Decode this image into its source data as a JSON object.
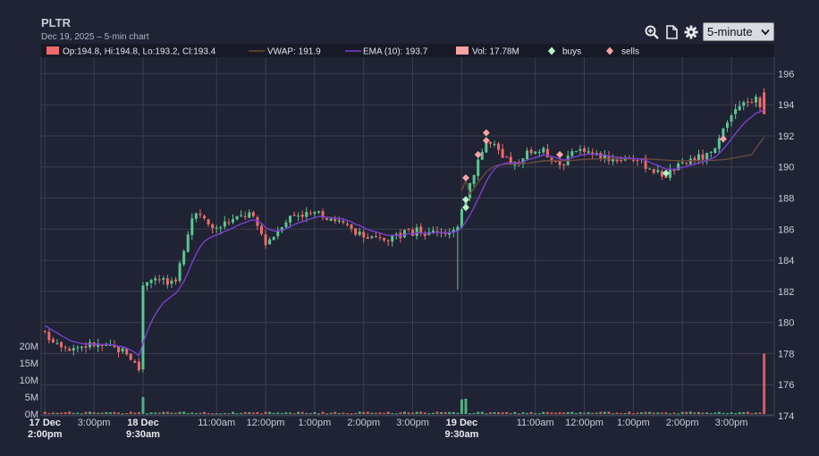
{
  "header": {
    "title": "PLTR",
    "subtitle": "Dec 19, 2025 – 5-min chart"
  },
  "toolbar": {
    "zoom_icon": "zoom-in-icon",
    "document_icon": "document-icon",
    "settings_icon": "gear-icon",
    "interval_value": "5-minute"
  },
  "legend": {
    "ohlc": "Op:194.8, Hi:194.8, Lo:193.2, Cl:193.4",
    "vwap": "VWAP: 191.9",
    "ema": "EMA (10): 193.7",
    "vol": "Vol: 17.78M",
    "buys": "buys",
    "sells": "sells"
  },
  "colors": {
    "background": "#1f2333",
    "up": "#5cc592",
    "down": "#ef6a6a",
    "vwap": "#6b4a3a",
    "ema": "#7b3fd0",
    "buy_marker": "#b9f5c9",
    "sell_marker": "#f5a3a3"
  },
  "chart_data": {
    "type": "candlestick",
    "symbol": "PLTR",
    "interval": "5-minute",
    "ylim": [
      174,
      197
    ],
    "price_ticks": [
      174,
      176,
      178,
      180,
      182,
      184,
      186,
      188,
      190,
      192,
      194,
      196
    ],
    "volume_ticks": [
      {
        "v": 0,
        "label": "0M"
      },
      {
        "v": 5,
        "label": "5M"
      },
      {
        "v": 10,
        "label": "10M"
      },
      {
        "v": 15,
        "label": "15M"
      },
      {
        "v": 20,
        "label": "20M"
      }
    ],
    "x_ticks": [
      {
        "bar": 0,
        "lines": [
          "17 Dec",
          "2:00pm"
        ],
        "bold": true
      },
      {
        "bar": 12,
        "lines": [
          "3:00pm"
        ],
        "bold": false
      },
      {
        "bar": 24,
        "lines": [
          "18 Dec",
          "9:30am"
        ],
        "bold": true
      },
      {
        "bar": 42,
        "lines": [
          "11:00am"
        ],
        "bold": false
      },
      {
        "bar": 54,
        "lines": [
          "12:00pm"
        ],
        "bold": false
      },
      {
        "bar": 66,
        "lines": [
          "1:00pm"
        ],
        "bold": false
      },
      {
        "bar": 78,
        "lines": [
          "2:00pm"
        ],
        "bold": false
      },
      {
        "bar": 90,
        "lines": [
          "3:00pm"
        ],
        "bold": false
      },
      {
        "bar": 102,
        "lines": [
          "19 Dec",
          "9:30am"
        ],
        "bold": true
      },
      {
        "bar": 120,
        "lines": [
          "11:00am"
        ],
        "bold": false
      },
      {
        "bar": 132,
        "lines": [
          "12:00pm"
        ],
        "bold": false
      },
      {
        "bar": 144,
        "lines": [
          "1:00pm"
        ],
        "bold": false
      },
      {
        "bar": 156,
        "lines": [
          "2:00pm"
        ],
        "bold": false
      },
      {
        "bar": 168,
        "lines": [
          "3:00pm"
        ],
        "bold": false
      }
    ],
    "price_path": [
      [
        0,
        179.2
      ],
      [
        3,
        178.8
      ],
      [
        6,
        178.4
      ],
      [
        9,
        178.5
      ],
      [
        12,
        178.6
      ],
      [
        15,
        178.4
      ],
      [
        18,
        178.3
      ],
      [
        20,
        178.1
      ],
      [
        23,
        177.0
      ],
      [
        24,
        182.5
      ],
      [
        26,
        183.0
      ],
      [
        28,
        182.8
      ],
      [
        30,
        182.5
      ],
      [
        32,
        182.9
      ],
      [
        34,
        184.5
      ],
      [
        36,
        186.7
      ],
      [
        38,
        186.8
      ],
      [
        40,
        186.3
      ],
      [
        42,
        186.0
      ],
      [
        44,
        186.4
      ],
      [
        46,
        186.6
      ],
      [
        48,
        186.8
      ],
      [
        50,
        187.0
      ],
      [
        52,
        186.2
      ],
      [
        54,
        185.2
      ],
      [
        56,
        185.6
      ],
      [
        58,
        186.4
      ],
      [
        60,
        186.8
      ],
      [
        62,
        187.0
      ],
      [
        64,
        187.0
      ],
      [
        66,
        186.9
      ],
      [
        68,
        186.9
      ],
      [
        70,
        186.8
      ],
      [
        72,
        186.5
      ],
      [
        74,
        186.1
      ],
      [
        76,
        185.7
      ],
      [
        78,
        185.5
      ],
      [
        80,
        185.4
      ],
      [
        82,
        185.3
      ],
      [
        84,
        185.5
      ],
      [
        86,
        185.6
      ],
      [
        88,
        185.7
      ],
      [
        90,
        185.8
      ],
      [
        92,
        185.9
      ],
      [
        94,
        185.7
      ],
      [
        96,
        186.0
      ],
      [
        99,
        185.8
      ],
      [
        101,
        185.9
      ],
      [
        102,
        187.5
      ],
      [
        104,
        189.0
      ],
      [
        106,
        190.5
      ],
      [
        108,
        191.6
      ],
      [
        110,
        191.3
      ],
      [
        112,
        190.5
      ],
      [
        114,
        190.3
      ],
      [
        116,
        190.1
      ],
      [
        118,
        190.8
      ],
      [
        120,
        191.1
      ],
      [
        122,
        191.0
      ],
      [
        124,
        190.6
      ],
      [
        126,
        190.2
      ],
      [
        128,
        190.5
      ],
      [
        130,
        191.0
      ],
      [
        132,
        191.2
      ],
      [
        134,
        190.8
      ],
      [
        136,
        190.7
      ],
      [
        138,
        190.6
      ],
      [
        140,
        190.5
      ],
      [
        142,
        190.6
      ],
      [
        144,
        190.6
      ],
      [
        146,
        190.3
      ],
      [
        148,
        190.0
      ],
      [
        150,
        189.6
      ],
      [
        152,
        189.5
      ],
      [
        154,
        189.9
      ],
      [
        156,
        190.1
      ],
      [
        158,
        190.5
      ],
      [
        160,
        190.6
      ],
      [
        162,
        190.7
      ],
      [
        164,
        191.0
      ],
      [
        166,
        192.2
      ],
      [
        168,
        193.3
      ],
      [
        170,
        193.8
      ],
      [
        172,
        194.3
      ],
      [
        174,
        194.5
      ],
      [
        176,
        193.4
      ]
    ],
    "volume_spikes": [
      {
        "bar": 24,
        "v": 5.0
      },
      {
        "bar": 102,
        "v": 4.3
      },
      {
        "bar": 103,
        "v": 4.5
      },
      {
        "bar": 176,
        "v": 17.78
      }
    ],
    "buys": [
      {
        "bar": 103,
        "price": 187.4
      },
      {
        "bar": 103,
        "price": 187.9
      },
      {
        "bar": 152,
        "price": 189.6
      }
    ],
    "sells": [
      {
        "bar": 103,
        "price": 189.3
      },
      {
        "bar": 106,
        "price": 190.8
      },
      {
        "bar": 108,
        "price": 191.7
      },
      {
        "bar": 108,
        "price": 192.2
      },
      {
        "bar": 126,
        "price": 190.8
      },
      {
        "bar": 166,
        "price": 191.8
      }
    ],
    "last": {
      "open": 194.8,
      "high": 194.8,
      "low": 193.2,
      "close": 193.4,
      "vwap": 191.9,
      "ema10": 193.7,
      "volume_m": 17.78
    }
  }
}
